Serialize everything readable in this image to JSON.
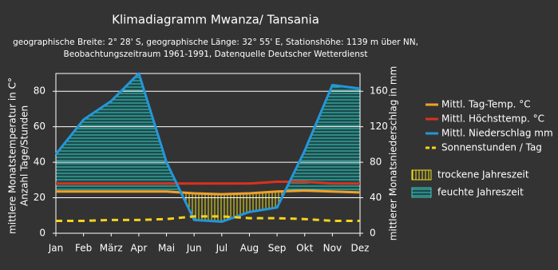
{
  "chart_data": {
    "type": "line",
    "title": "Klimadiagramm Mwanza/ Tansania",
    "subtitle": [
      "geographische Breite: 2° 28' S, geographische Länge: 32° 55' E, Stationshöhe: 1139 m über NN,",
      "Beobachtungszeitraum 1961-1991, Datenquelle Deutscher Wetterdienst"
    ],
    "ylabel": [
      "mittlere Monatstemperatur in C°",
      "Anzahl Tage/Stunden"
    ],
    "y2label": "mittlerer Monatsniederschlag in mm",
    "categories": [
      "Jan",
      "Feb",
      "März",
      "Apr",
      "Mai",
      "Jun",
      "Jul",
      "Aug",
      "Sep",
      "Okt",
      "Nov",
      "Dez"
    ],
    "ylim": [
      0,
      90
    ],
    "yticks": [
      0,
      20,
      40,
      60,
      80
    ],
    "y2lim": [
      0,
      180
    ],
    "y2ticks": [
      0,
      40,
      80,
      120,
      160
    ],
    "grid": true,
    "series": [
      {
        "name": "Mittl. Tag-Temp. °C",
        "color": "#f0a02a",
        "values": [
          23.5,
          23.5,
          23.5,
          23.5,
          23.5,
          22.5,
          22,
          22.5,
          23.5,
          24,
          23.5,
          23
        ]
      },
      {
        "name": "Mittl. Höchsttemp. °C",
        "color": "#d8321e",
        "values": [
          28,
          28,
          28,
          28,
          28,
          28,
          28,
          28,
          29,
          29,
          28,
          28
        ]
      },
      {
        "name": "Mittl. Niederschlag mm",
        "color": "#2496d8",
        "axis": "y2",
        "values": [
          89,
          128,
          149,
          180,
          80,
          15,
          13,
          24,
          29,
          93,
          167,
          163
        ]
      },
      {
        "name": "Sonnenstunden / Tag",
        "color": "#f5d21e",
        "dashed": true,
        "values": [
          7,
          7,
          7.5,
          7.5,
          8,
          9.5,
          9.5,
          8.5,
          8.5,
          8,
          7,
          7
        ]
      }
    ],
    "season_labels": [
      "trockene Jahreszeit",
      "feuchte Jahreszeit"
    ],
    "season_colors": [
      "#f0e020",
      "#40c8c0"
    ]
  }
}
